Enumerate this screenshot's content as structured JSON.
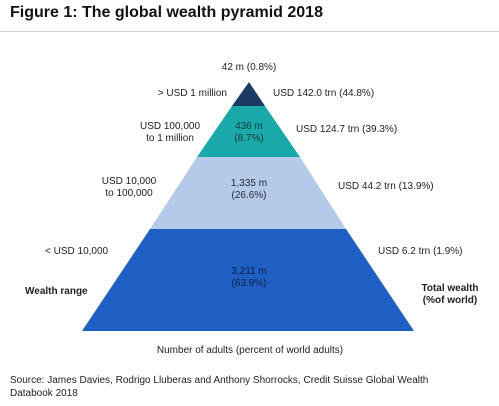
{
  "title": "Figure 1: The global wealth pyramid 2018",
  "tiers": [
    {
      "id": "top",
      "range": "> USD 1 million",
      "adults": "42 m (0.8%)",
      "wealth": "USD 142.0 trn (44.8%)",
      "color": "#1c3a66"
    },
    {
      "id": "upper",
      "range_line1": "USD 100,000",
      "range_line2": "to 1 million",
      "adults_line1": "436 m",
      "adults_line2": "(8.7%)",
      "wealth": "USD 124.7 trn (39.3%)",
      "color": "#1aa9a8"
    },
    {
      "id": "middle",
      "range_line1": "USD 10,000",
      "range_line2": "to 100,000",
      "adults_line1": "1,335 m",
      "adults_line2": "(26.6%)",
      "wealth": "USD 44.2 trn (13.9%)",
      "color": "#b5c9e8"
    },
    {
      "id": "base",
      "range": "< USD 10,000",
      "adults_line1": "3,211 m",
      "adults_line2": "(63.9%)",
      "wealth": "USD 6.2 trn (1.9%)",
      "color": "#1f5fc4"
    }
  ],
  "left_heading": "Wealth range",
  "right_heading_line1": "Total wealth",
  "right_heading_line2": "(%of world)",
  "x_caption": "Number of adults (percent of world adults)",
  "source_line1": "Source: James Davies, Rodrigo Lluberas and Anthony Shorrocks, Credit Suisse Global Wealth",
  "source_line2": "Databook 2018"
}
